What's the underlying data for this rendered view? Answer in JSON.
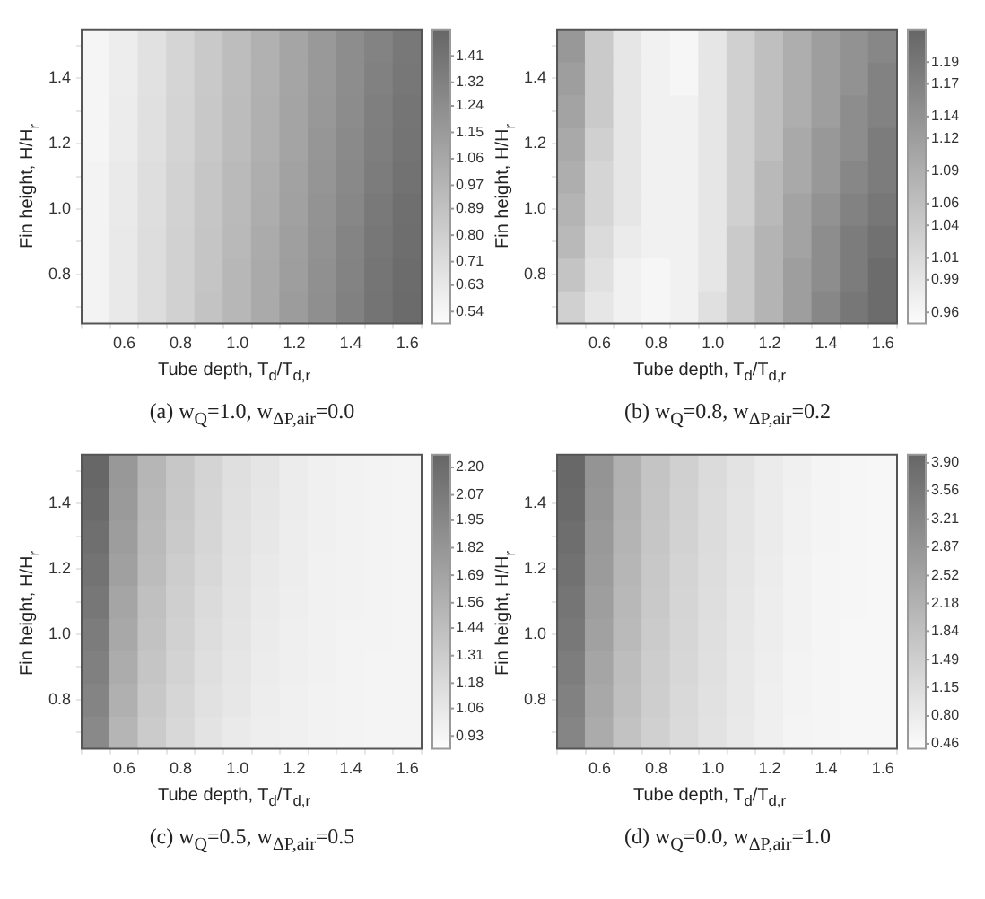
{
  "chart_data": [
    {
      "type": "heatmap",
      "title": "(a)  w$_{Q}$=1.0,  w$_{ΔP,air}$=0.0",
      "xlabel": "Tube depth, T$_{d}$/T$_{d,r}$",
      "ylabel": "Fin height, H/H$_{r}$",
      "categories": [
        null,
        "0.6",
        null,
        "0.8",
        null,
        "1.0",
        null,
        "1.2",
        null,
        "1.4",
        null,
        "1.6"
      ],
      "y_categories": [
        null,
        "1.4",
        null,
        "1.2",
        null,
        "1.0",
        null,
        "0.8",
        null
      ],
      "cells": [
        [
          0.55,
          0.6,
          0.68,
          0.76,
          0.84,
          0.92,
          1.0,
          1.08,
          1.16,
          1.24,
          1.31,
          1.38
        ],
        [
          0.55,
          0.6,
          0.68,
          0.76,
          0.84,
          0.92,
          1.0,
          1.08,
          1.16,
          1.24,
          1.32,
          1.39
        ],
        [
          0.55,
          0.61,
          0.69,
          0.77,
          0.85,
          0.93,
          1.01,
          1.09,
          1.17,
          1.25,
          1.33,
          1.4
        ],
        [
          0.55,
          0.61,
          0.69,
          0.77,
          0.85,
          0.93,
          1.01,
          1.09,
          1.18,
          1.26,
          1.34,
          1.41
        ],
        [
          0.56,
          0.62,
          0.7,
          0.78,
          0.86,
          0.94,
          1.02,
          1.1,
          1.19,
          1.27,
          1.35,
          1.42
        ],
        [
          0.56,
          0.62,
          0.7,
          0.78,
          0.86,
          0.94,
          1.03,
          1.11,
          1.2,
          1.28,
          1.37,
          1.44
        ],
        [
          0.56,
          0.63,
          0.71,
          0.79,
          0.87,
          0.95,
          1.04,
          1.12,
          1.21,
          1.3,
          1.39,
          1.45
        ],
        [
          0.56,
          0.63,
          0.71,
          0.79,
          0.87,
          0.96,
          1.05,
          1.13,
          1.22,
          1.31,
          1.4,
          1.46
        ],
        [
          0.56,
          0.63,
          0.71,
          0.79,
          0.88,
          0.96,
          1.05,
          1.14,
          1.23,
          1.32,
          1.41,
          1.47
        ]
      ],
      "clim": [
        0.5,
        1.5
      ],
      "cticks": [
        1.41,
        1.32,
        1.24,
        1.15,
        1.06,
        0.97,
        0.89,
        {
          "value": 0.8,
          "label": "0.80"
        },
        0.71,
        0.63,
        0.54
      ]
    },
    {
      "type": "heatmap",
      "title": "(b)  w$_{Q}$=0.8,  w$_{ΔP,air}$=0.2",
      "xlabel": "Tube depth, T$_{d}$/T$_{d,r}$",
      "ylabel": "Fin height, H/H$_{r}$",
      "categories": [
        null,
        "0.6",
        null,
        "0.8",
        null,
        "1.0",
        null,
        "1.2",
        null,
        "1.4",
        null,
        "1.6"
      ],
      "y_categories": [
        null,
        "1.4",
        null,
        "1.2",
        null,
        "1.0",
        null,
        "0.8",
        null
      ],
      "cells": [
        [
          1.13,
          1.04,
          0.99,
          0.97,
          0.96,
          0.99,
          1.03,
          1.06,
          1.09,
          1.12,
          1.14,
          1.16
        ],
        [
          1.12,
          1.04,
          0.99,
          0.97,
          0.96,
          0.99,
          1.03,
          1.06,
          1.09,
          1.12,
          1.14,
          1.17
        ],
        [
          1.11,
          1.04,
          0.99,
          0.97,
          0.97,
          0.99,
          1.03,
          1.06,
          1.09,
          1.12,
          1.15,
          1.17
        ],
        [
          1.1,
          1.03,
          0.99,
          0.97,
          0.97,
          0.99,
          1.03,
          1.06,
          1.1,
          1.13,
          1.15,
          1.18
        ],
        [
          1.09,
          1.02,
          0.99,
          0.97,
          0.97,
          0.99,
          1.03,
          1.07,
          1.1,
          1.13,
          1.16,
          1.18
        ],
        [
          1.08,
          1.02,
          0.99,
          0.97,
          0.97,
          0.99,
          1.03,
          1.07,
          1.11,
          1.14,
          1.17,
          1.19
        ],
        [
          1.07,
          1.01,
          0.98,
          0.97,
          0.97,
          0.99,
          1.04,
          1.08,
          1.11,
          1.15,
          1.18,
          1.2
        ],
        [
          1.05,
          1.0,
          0.97,
          0.96,
          0.97,
          0.99,
          1.04,
          1.08,
          1.12,
          1.15,
          1.18,
          1.21
        ],
        [
          1.03,
          0.99,
          0.97,
          0.96,
          0.97,
          1.0,
          1.04,
          1.08,
          1.12,
          1.16,
          1.19,
          1.21
        ]
      ],
      "clim": [
        0.95,
        1.22
      ],
      "cticks": [
        1.19,
        1.17,
        1.14,
        1.12,
        1.09,
        1.06,
        1.04,
        1.01,
        0.99,
        0.96
      ]
    },
    {
      "type": "heatmap",
      "title": "(c)  w$_{Q}$=0.5,  w$_{ΔP,air}$=0.5",
      "xlabel": "Tube depth, T$_{d}$/T$_{d,r}$",
      "ylabel": "Fin height, H/H$_{r}$",
      "categories": [
        null,
        "0.6",
        null,
        "0.8",
        null,
        "1.0",
        null,
        "1.2",
        null,
        "1.4",
        null,
        "1.6"
      ],
      "y_categories": [
        null,
        "1.4",
        null,
        "1.2",
        null,
        "1.0",
        null,
        "0.8",
        null
      ],
      "cells": [
        [
          2.25,
          1.8,
          1.52,
          1.36,
          1.24,
          1.14,
          1.08,
          1.02,
          0.98,
          0.96,
          0.95,
          0.94
        ],
        [
          2.22,
          1.78,
          1.5,
          1.35,
          1.23,
          1.13,
          1.07,
          1.02,
          0.98,
          0.96,
          0.95,
          0.94
        ],
        [
          2.18,
          1.75,
          1.48,
          1.33,
          1.22,
          1.12,
          1.06,
          1.01,
          0.98,
          0.96,
          0.95,
          0.94
        ],
        [
          2.14,
          1.72,
          1.46,
          1.31,
          1.2,
          1.11,
          1.05,
          1.01,
          0.97,
          0.96,
          0.95,
          0.94
        ],
        [
          2.1,
          1.68,
          1.43,
          1.29,
          1.18,
          1.1,
          1.04,
          1.0,
          0.97,
          0.96,
          0.95,
          0.94
        ],
        [
          2.06,
          1.65,
          1.41,
          1.27,
          1.16,
          1.09,
          1.03,
          0.99,
          0.97,
          0.95,
          0.95,
          0.94
        ],
        [
          2.02,
          1.61,
          1.38,
          1.25,
          1.14,
          1.07,
          1.02,
          0.99,
          0.97,
          0.95,
          0.94,
          0.94
        ],
        [
          1.98,
          1.57,
          1.35,
          1.22,
          1.12,
          1.06,
          1.01,
          0.98,
          0.96,
          0.95,
          0.94,
          0.94
        ],
        [
          1.94,
          1.53,
          1.32,
          1.2,
          1.1,
          1.04,
          1.0,
          0.98,
          0.96,
          0.95,
          0.94,
          0.94
        ]
      ],
      "clim": [
        0.87,
        2.26
      ],
      "cticks": [
        {
          "value": 2.2,
          "label": "2.20"
        },
        2.07,
        1.95,
        1.82,
        1.69,
        1.56,
        1.44,
        1.31,
        1.18,
        1.06,
        0.93
      ]
    },
    {
      "type": "heatmap",
      "title": "(d)  w$_{Q}$=0.0,  w$_{ΔP,air}$=1.0",
      "xlabel": "Tube depth, T$_{d}$/T$_{d,r}$",
      "ylabel": "Fin height, H/H$_{r}$",
      "categories": [
        null,
        "0.6",
        null,
        "0.8",
        null,
        "1.0",
        null,
        "1.2",
        null,
        "1.4",
        null,
        "1.6"
      ],
      "y_categories": [
        null,
        "1.4",
        null,
        "1.2",
        null,
        "1.0",
        null,
        "0.8",
        null
      ],
      "cells": [
        [
          3.95,
          2.9,
          2.2,
          1.75,
          1.45,
          1.2,
          1.0,
          0.82,
          0.68,
          0.6,
          0.55,
          0.52
        ],
        [
          3.9,
          2.85,
          2.17,
          1.72,
          1.43,
          1.18,
          0.98,
          0.81,
          0.67,
          0.59,
          0.55,
          0.52
        ],
        [
          3.82,
          2.78,
          2.12,
          1.69,
          1.4,
          1.16,
          0.97,
          0.8,
          0.66,
          0.59,
          0.54,
          0.52
        ],
        [
          3.74,
          2.72,
          2.08,
          1.66,
          1.37,
          1.14,
          0.95,
          0.78,
          0.65,
          0.58,
          0.54,
          0.51
        ],
        [
          3.65,
          2.65,
          2.03,
          1.62,
          1.34,
          1.12,
          0.93,
          0.77,
          0.64,
          0.58,
          0.54,
          0.51
        ],
        [
          3.56,
          2.58,
          1.98,
          1.58,
          1.31,
          1.09,
          0.91,
          0.75,
          0.63,
          0.57,
          0.53,
          0.51
        ],
        [
          3.45,
          2.5,
          1.92,
          1.54,
          1.28,
          1.07,
          0.89,
          0.74,
          0.62,
          0.57,
          0.53,
          0.51
        ],
        [
          3.35,
          2.42,
          1.86,
          1.5,
          1.25,
          1.04,
          0.87,
          0.72,
          0.61,
          0.56,
          0.53,
          0.51
        ],
        [
          3.25,
          2.35,
          1.8,
          1.46,
          1.21,
          1.02,
          0.85,
          0.71,
          0.6,
          0.56,
          0.53,
          0.51
        ]
      ],
      "clim": [
        0.4,
        4.0
      ],
      "cticks": [
        {
          "value": 3.9,
          "label": "3.90"
        },
        3.56,
        3.21,
        2.87,
        2.52,
        2.18,
        1.84,
        1.49,
        1.15,
        {
          "value": 0.8,
          "label": "0.80"
        },
        0.46
      ]
    }
  ]
}
